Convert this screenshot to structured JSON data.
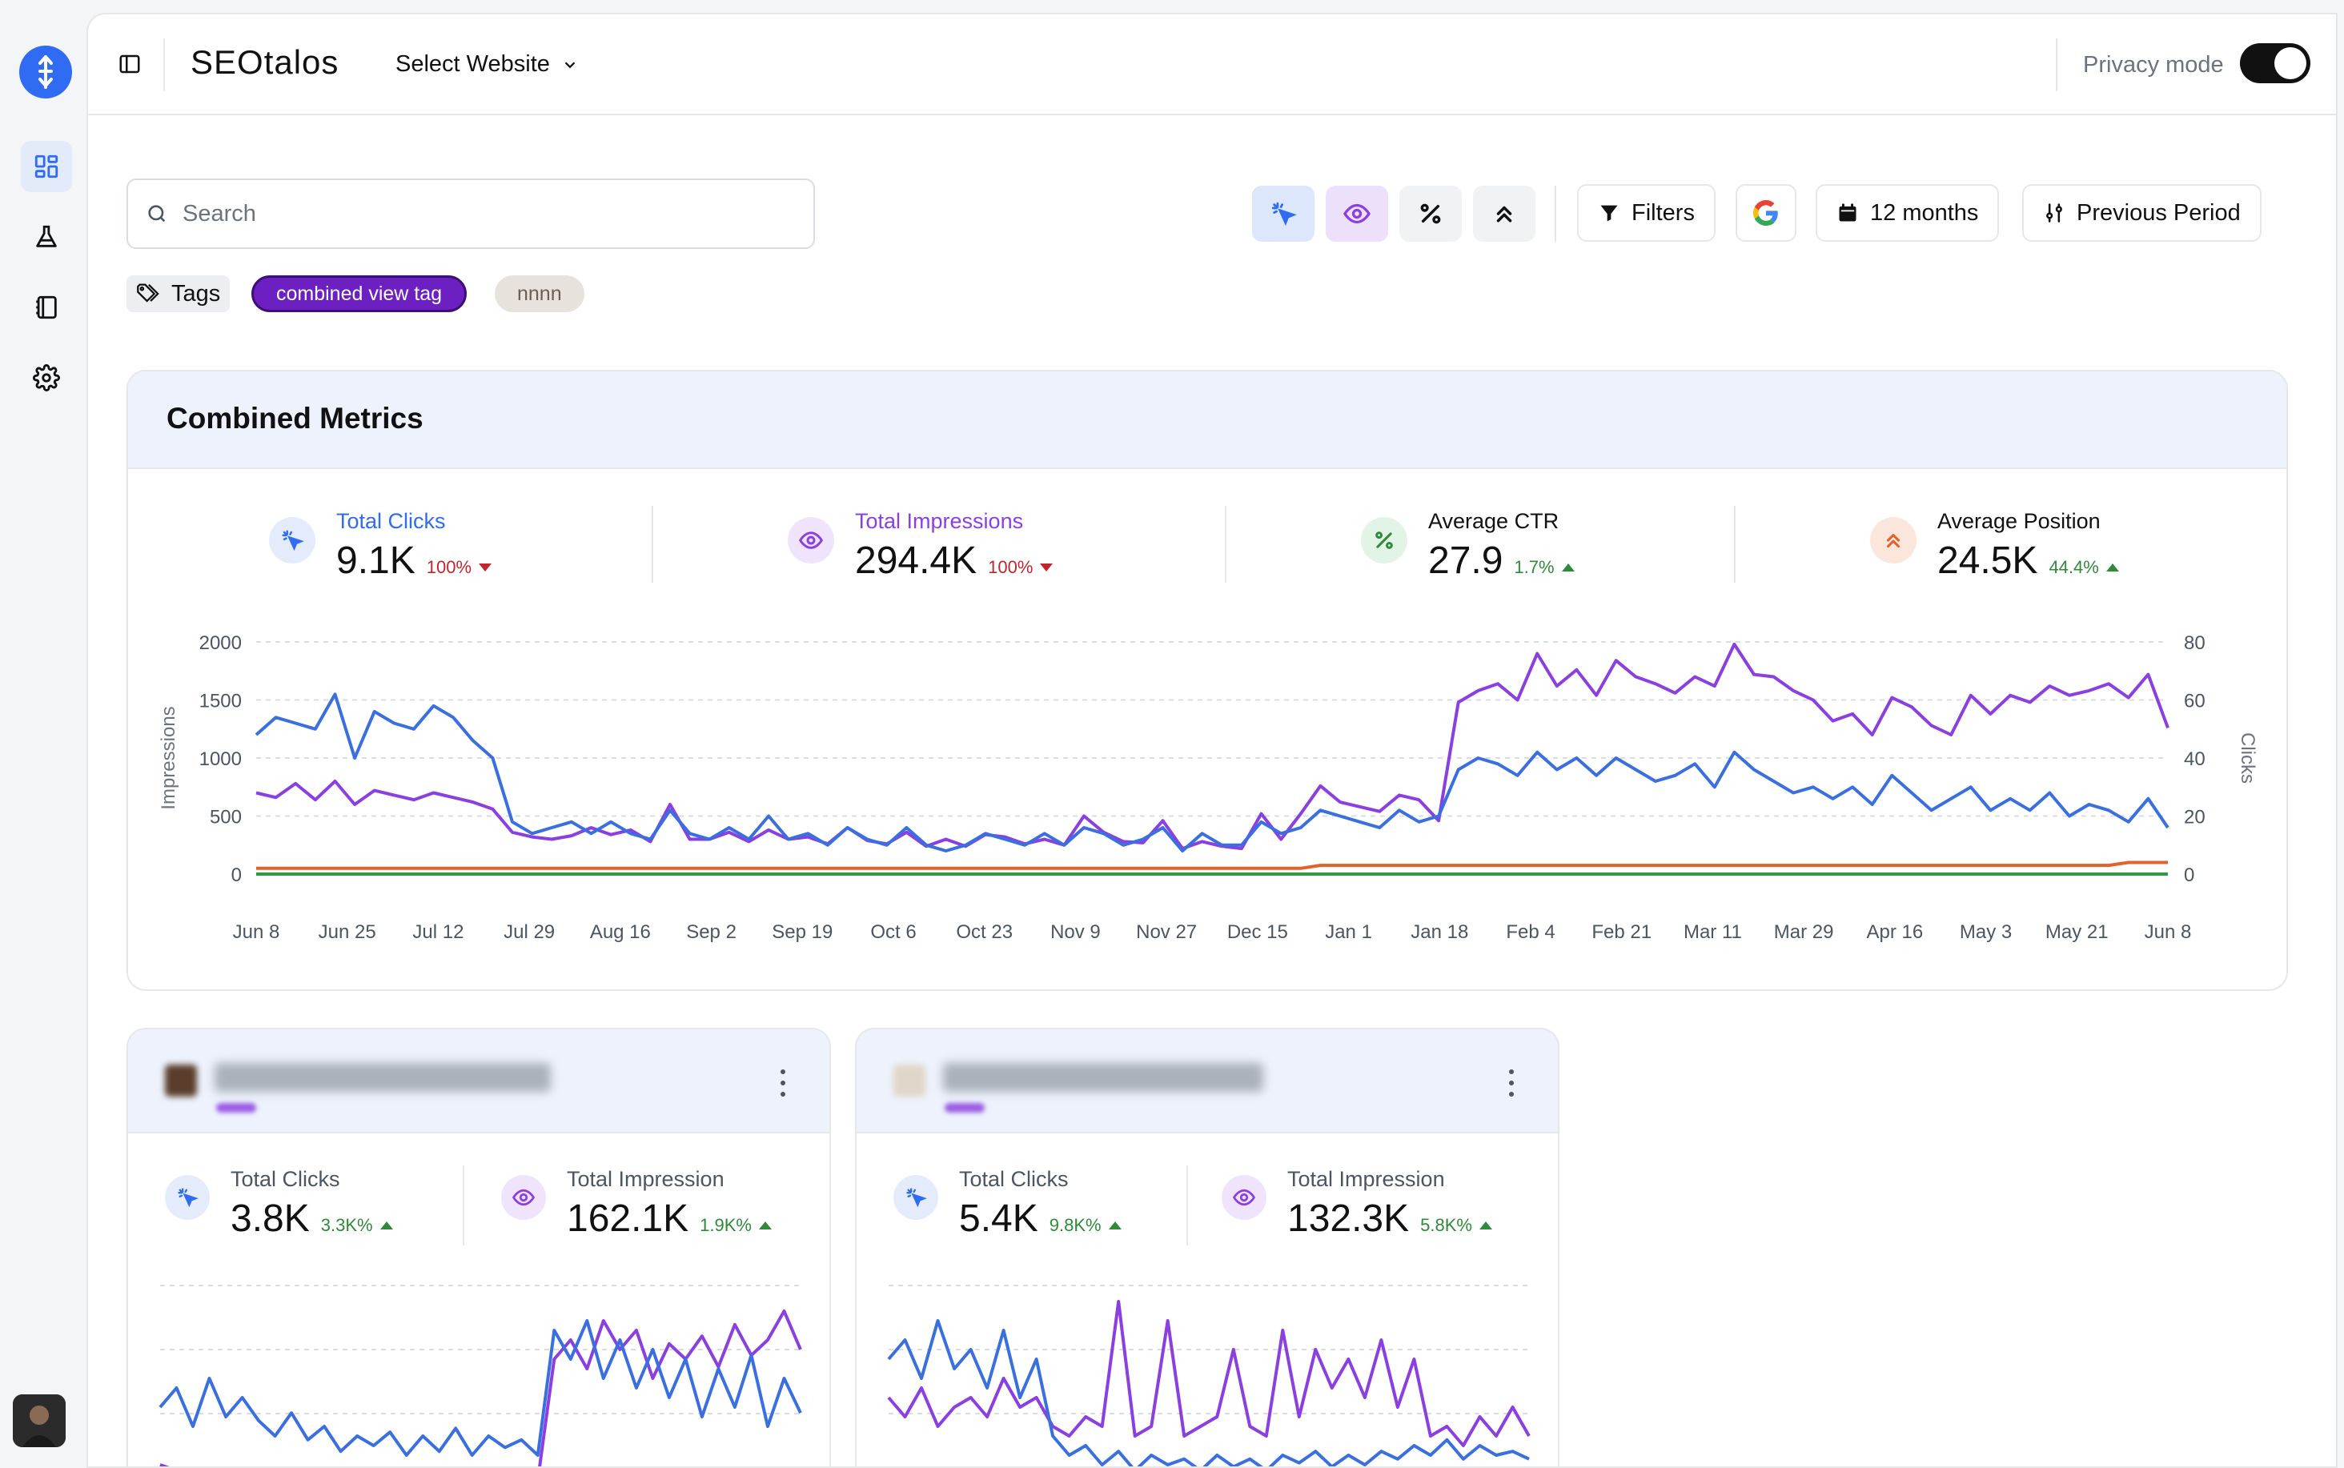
{
  "app": {
    "brand": "SEOtalos"
  },
  "header": {
    "select_website": "Select Website",
    "privacy_label": "Privacy mode",
    "privacy_on": true
  },
  "search": {
    "placeholder": "Search"
  },
  "toolbar": {
    "filters": "Filters",
    "range": "12 months",
    "compare": "Previous Period"
  },
  "tags": {
    "label": "Tags",
    "items": [
      "combined view tag",
      "nnnn"
    ]
  },
  "combined": {
    "title": "Combined Metrics",
    "stats": [
      {
        "label": "Total Clicks",
        "value": "9.1K",
        "delta": "100%",
        "trend": "down"
      },
      {
        "label": "Total Impressions",
        "value": "294.4K",
        "delta": "100%",
        "trend": "down"
      },
      {
        "label": "Average CTR",
        "value": "27.9",
        "delta": "1.7%",
        "trend": "up"
      },
      {
        "label": "Average Position",
        "value": "24.5K",
        "delta": "44.4%",
        "trend": "up"
      }
    ]
  },
  "sites": [
    {
      "stats": [
        {
          "label": "Total Clicks",
          "value": "3.8K",
          "delta": "3.3K%",
          "trend": "up"
        },
        {
          "label": "Total Impression",
          "value": "162.1K",
          "delta": "1.9K%",
          "trend": "up"
        }
      ]
    },
    {
      "stats": [
        {
          "label": "Total Clicks",
          "value": "5.4K",
          "delta": "9.8K%",
          "trend": "up"
        },
        {
          "label": "Total Impression",
          "value": "132.3K",
          "delta": "5.8K%",
          "trend": "up"
        }
      ]
    }
  ],
  "colors": {
    "clicks": "#3a6fe0",
    "impressions": "#8b3fe0",
    "ctr": "#2f9a3f",
    "position": "#e2622c",
    "accent": "#2f6bf3"
  },
  "chart_data": {
    "type": "line",
    "ylabel": "Impressions",
    "y2label": "Clicks",
    "ylim": [
      0,
      2000
    ],
    "y2lim": [
      0,
      80
    ],
    "yticks": [
      "2000",
      "1500",
      "1000",
      "500",
      "0"
    ],
    "y2ticks": [
      "80",
      "60",
      "40",
      "20",
      "0"
    ],
    "xticks": [
      "Jun 8",
      "Jun 25",
      "Jul 12",
      "Jul 29",
      "Aug 16",
      "Sep 2",
      "Sep 19",
      "Oct 6",
      "Oct 23",
      "Nov 9",
      "Nov 27",
      "Dec 15",
      "Jan 1",
      "Jan 18",
      "Feb 4",
      "Feb 21",
      "Mar 11",
      "Mar 29",
      "Apr 16",
      "May 3",
      "May 21",
      "Jun 8"
    ],
    "series": [
      {
        "name": "Total Impressions",
        "axis": "left",
        "key": "impressions",
        "values": [
          700,
          660,
          780,
          640,
          800,
          600,
          720,
          680,
          640,
          700,
          660,
          620,
          560,
          360,
          320,
          300,
          330,
          400,
          340,
          380,
          280,
          600,
          300,
          300,
          360,
          280,
          380,
          300,
          320,
          260,
          400,
          290,
          260,
          360,
          240,
          300,
          240,
          340,
          320,
          260,
          300,
          250,
          500,
          360,
          280,
          270,
          460,
          220,
          280,
          240,
          220,
          520,
          300,
          520,
          760,
          620,
          580,
          540,
          680,
          640,
          460,
          1480,
          1580,
          1640,
          1500,
          1900,
          1620,
          1760,
          1540,
          1840,
          1700,
          1640,
          1560,
          1700,
          1620,
          1980,
          1720,
          1700,
          1580,
          1500,
          1320,
          1380,
          1200,
          1520,
          1440,
          1280,
          1200,
          1540,
          1380,
          1540,
          1480,
          1620,
          1540,
          1580,
          1640,
          1520,
          1720,
          1260
        ]
      },
      {
        "name": "Total Clicks",
        "axis": "right",
        "key": "clicks",
        "values": [
          48,
          54,
          52,
          50,
          62,
          40,
          56,
          52,
          50,
          58,
          54,
          46,
          40,
          18,
          14,
          16,
          18,
          14,
          18,
          14,
          12,
          22,
          14,
          12,
          16,
          12,
          20,
          12,
          14,
          10,
          16,
          12,
          10,
          16,
          10,
          8,
          10,
          14,
          12,
          10,
          14,
          10,
          16,
          14,
          10,
          12,
          16,
          8,
          14,
          10,
          10,
          18,
          14,
          16,
          22,
          20,
          18,
          16,
          22,
          18,
          20,
          36,
          40,
          38,
          34,
          42,
          36,
          40,
          34,
          40,
          36,
          32,
          34,
          38,
          30,
          42,
          36,
          32,
          28,
          30,
          26,
          30,
          24,
          34,
          28,
          22,
          26,
          30,
          22,
          26,
          22,
          28,
          20,
          24,
          22,
          18,
          26,
          16
        ]
      },
      {
        "name": "Average Position",
        "axis": "right",
        "key": "position",
        "values": [
          2,
          2,
          2,
          2,
          2,
          2,
          2,
          2,
          2,
          2,
          2,
          2,
          2,
          2,
          2,
          2,
          2,
          2,
          2,
          2,
          2,
          2,
          2,
          2,
          2,
          2,
          2,
          2,
          2,
          2,
          2,
          2,
          2,
          2,
          2,
          2,
          2,
          2,
          2,
          2,
          2,
          2,
          2,
          2,
          2,
          2,
          2,
          2,
          2,
          2,
          2,
          2,
          2,
          2,
          3,
          3,
          3,
          3,
          3,
          3,
          3,
          3,
          3,
          3,
          3,
          3,
          3,
          3,
          3,
          3,
          3,
          3,
          3,
          3,
          3,
          3,
          3,
          3,
          3,
          3,
          3,
          3,
          3,
          3,
          3,
          3,
          3,
          3,
          3,
          3,
          3,
          3,
          3,
          3,
          3,
          4,
          4,
          4
        ]
      },
      {
        "name": "Average CTR",
        "axis": "right",
        "key": "ctr",
        "values": [
          0,
          0,
          0,
          0,
          0,
          0,
          0,
          0,
          0,
          0,
          0,
          0,
          0,
          0,
          0,
          0,
          0,
          0,
          0,
          0,
          0,
          0,
          0,
          0,
          0,
          0,
          0,
          0,
          0,
          0,
          0,
          0,
          0,
          0,
          0,
          0,
          0,
          0,
          0,
          0,
          0,
          0,
          0,
          0,
          0,
          0,
          0,
          0,
          0,
          0,
          0,
          0,
          0,
          0,
          0,
          0,
          0,
          0,
          0,
          0,
          0,
          0,
          0,
          0,
          0,
          0,
          0,
          0,
          0,
          0,
          0,
          0,
          0,
          0,
          0,
          0,
          0,
          0,
          0,
          0,
          0,
          0,
          0,
          0,
          0,
          0,
          0,
          0,
          0,
          0,
          0,
          0,
          0,
          0,
          0,
          0,
          0,
          0
        ]
      }
    ],
    "mini_1": {
      "clicks": [
        0.45,
        0.55,
        0.35,
        0.6,
        0.4,
        0.5,
        0.38,
        0.3,
        0.42,
        0.28,
        0.35,
        0.22,
        0.3,
        0.25,
        0.32,
        0.2,
        0.3,
        0.22,
        0.34,
        0.2,
        0.3,
        0.24,
        0.28,
        0.2,
        0.85,
        0.7,
        0.9,
        0.6,
        0.8,
        0.55,
        0.75,
        0.5,
        0.7,
        0.4,
        0.65,
        0.45,
        0.72,
        0.35,
        0.6,
        0.42
      ],
      "impressions": [
        0.15,
        0.12,
        0.13,
        0.11,
        0.12,
        0.1,
        0.11,
        0.09,
        0.1,
        0.09,
        0.1,
        0.08,
        0.09,
        0.08,
        0.09,
        0.07,
        0.08,
        0.07,
        0.08,
        0.07,
        0.08,
        0.07,
        0.08,
        0.07,
        0.7,
        0.8,
        0.65,
        0.9,
        0.75,
        0.85,
        0.6,
        0.78,
        0.7,
        0.82,
        0.66,
        0.88,
        0.72,
        0.8,
        0.95,
        0.75
      ]
    },
    "mini_2": {
      "clicks": [
        0.7,
        0.8,
        0.6,
        0.9,
        0.65,
        0.75,
        0.55,
        0.85,
        0.5,
        0.7,
        0.3,
        0.2,
        0.25,
        0.15,
        0.22,
        0.12,
        0.2,
        0.15,
        0.18,
        0.12,
        0.2,
        0.14,
        0.18,
        0.12,
        0.2,
        0.16,
        0.22,
        0.14,
        0.2,
        0.15,
        0.22,
        0.18,
        0.25,
        0.2,
        0.28,
        0.18,
        0.25,
        0.2,
        0.22,
        0.18
      ],
      "impressions": [
        0.5,
        0.4,
        0.55,
        0.35,
        0.45,
        0.5,
        0.4,
        0.6,
        0.45,
        0.5,
        0.35,
        0.3,
        0.4,
        0.35,
        1.0,
        0.3,
        0.35,
        0.9,
        0.3,
        0.35,
        0.4,
        0.75,
        0.35,
        0.3,
        0.85,
        0.4,
        0.75,
        0.55,
        0.7,
        0.5,
        0.8,
        0.45,
        0.7,
        0.3,
        0.35,
        0.25,
        0.4,
        0.3,
        0.45,
        0.3
      ]
    }
  }
}
